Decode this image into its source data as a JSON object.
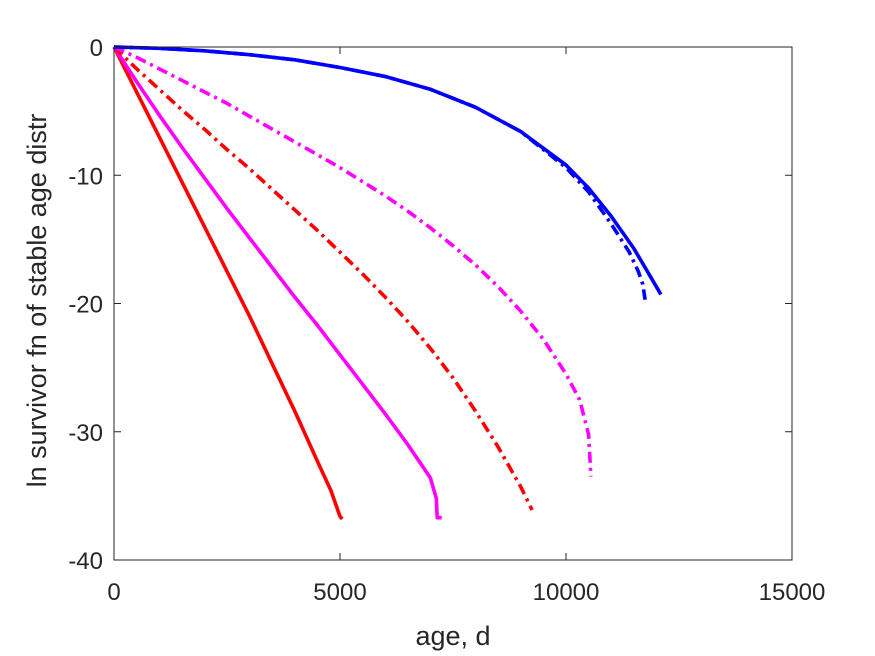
{
  "chart_data": {
    "type": "line",
    "title": "",
    "xlabel": "age, d",
    "ylabel": "ln survivor fn of stable age distr",
    "xlim": [
      0,
      15000
    ],
    "ylim": [
      -40,
      0
    ],
    "xticks": [
      0,
      5000,
      10000,
      15000
    ],
    "yticks": [
      0,
      -10,
      -20,
      -30,
      -40
    ],
    "grid": false,
    "legend": "none",
    "series": [
      {
        "color": "#ff0000",
        "style": "solid",
        "x": [
          0,
          500,
          1000,
          1500,
          2000,
          2500,
          3000,
          3500,
          4000,
          4500,
          4800,
          4900,
          5000,
          5050
        ],
        "y": [
          0,
          -3.5,
          -7.0,
          -10.5,
          -14.0,
          -17.5,
          -21.0,
          -24.7,
          -28.4,
          -32.3,
          -34.6,
          -35.6,
          -36.6,
          -36.8
        ]
      },
      {
        "color": "#ff00ff",
        "style": "solid",
        "x": [
          0,
          500,
          1000,
          1500,
          2000,
          2500,
          3000,
          3500,
          4000,
          4500,
          5000,
          5500,
          6000,
          6500,
          7000,
          7130,
          7150,
          7250
        ],
        "y": [
          0,
          -2.7,
          -5.3,
          -7.8,
          -10.2,
          -12.6,
          -14.9,
          -17.2,
          -19.5,
          -21.7,
          -24.0,
          -26.3,
          -28.6,
          -31.0,
          -33.6,
          -35.2,
          -36.7,
          -36.7
        ]
      },
      {
        "color": "#ff0000",
        "style": "dashdot",
        "x": [
          0,
          500,
          1000,
          1500,
          2000,
          2500,
          3000,
          3500,
          4000,
          4500,
          5000,
          5500,
          6000,
          6500,
          7000,
          7500,
          8000,
          8500,
          9000,
          9250
        ],
        "y": [
          0,
          -1.7,
          -3.3,
          -4.9,
          -6.4,
          -8.0,
          -9.5,
          -11.1,
          -12.7,
          -14.3,
          -16.0,
          -17.7,
          -19.5,
          -21.4,
          -23.5,
          -25.8,
          -28.4,
          -31.2,
          -34.3,
          -36.1
        ]
      },
      {
        "color": "#ff00ff",
        "style": "dashdot",
        "x": [
          0,
          500,
          1000,
          1500,
          2000,
          2500,
          3000,
          3500,
          4000,
          4500,
          5000,
          5500,
          6000,
          6500,
          7000,
          7500,
          8000,
          8500,
          9000,
          9500,
          10000,
          10300,
          10500,
          10550
        ],
        "y": [
          0,
          -0.8,
          -1.7,
          -2.6,
          -3.5,
          -4.4,
          -5.4,
          -6.4,
          -7.4,
          -8.4,
          -9.4,
          -10.5,
          -11.6,
          -12.8,
          -14.1,
          -15.5,
          -17.0,
          -18.7,
          -20.6,
          -22.8,
          -25.5,
          -27.5,
          -30.2,
          -33.5
        ]
      },
      {
        "color": "#0000ff",
        "style": "solid",
        "x": [
          0,
          1000,
          2000,
          3000,
          4000,
          5000,
          6000,
          7000,
          8000,
          9000,
          10000,
          10500,
          11000,
          11500,
          11800,
          12000,
          12100
        ],
        "y": [
          0,
          -0.1,
          -0.3,
          -0.6,
          -1.0,
          -1.6,
          -2.3,
          -3.3,
          -4.7,
          -6.6,
          -9.2,
          -11.0,
          -13.2,
          -15.7,
          -17.5,
          -18.7,
          -19.3
        ]
      },
      {
        "color": "#0000ff",
        "style": "dashdot",
        "x": [
          0,
          1000,
          2000,
          3000,
          4000,
          5000,
          6000,
          7000,
          8000,
          9000,
          10000,
          10500,
          11000,
          11400,
          11600,
          11700,
          11750
        ],
        "y": [
          0,
          -0.1,
          -0.3,
          -0.6,
          -1.0,
          -1.6,
          -2.3,
          -3.3,
          -4.7,
          -6.6,
          -9.4,
          -11.3,
          -13.8,
          -16.0,
          -17.5,
          -18.5,
          -19.7
        ]
      }
    ]
  }
}
